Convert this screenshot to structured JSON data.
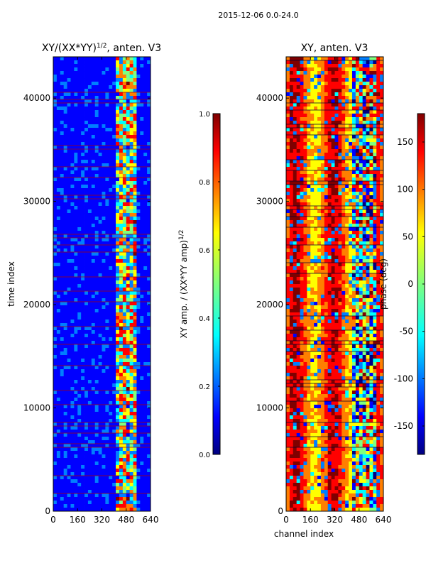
{
  "suptitle": "2015-12-06 0.0-24.0",
  "colors": {
    "jet": [
      "#00007f",
      "#0000ff",
      "#007fff",
      "#00ffff",
      "#7fff7f",
      "#ffff00",
      "#ff7f00",
      "#ff0000",
      "#7f0000"
    ],
    "axis": "#000000",
    "bg": "#ffffff"
  },
  "chart_data": [
    {
      "type": "heatmap",
      "title": "XY/(XX*YY)^1/2, anten. V3",
      "title_main": "XY/(XX*YY)",
      "title_exp": "1/2",
      "title_tail": ", anten. V3",
      "xlabel": "",
      "ylabel": "time index",
      "xlim": [
        0,
        640
      ],
      "ylim": [
        0,
        44000
      ],
      "xticks": [
        0,
        160,
        320,
        480,
        640
      ],
      "yticks": [
        0,
        10000,
        20000,
        30000,
        40000
      ],
      "colorbar": {
        "label": "XY amp. / (XX*YY amp)^1/2",
        "label_main": "XY amp. / (XX*YY amp)",
        "label_exp": "1/2",
        "range": [
          0.0,
          1.0
        ],
        "ticks": [
          "0.0",
          "0.2",
          "0.4",
          "0.6",
          "0.8",
          "1.0"
        ]
      }
    },
    {
      "type": "heatmap",
      "title": "XY, anten. V3",
      "xlabel": "channel index",
      "ylabel": "",
      "xlim": [
        0,
        640
      ],
      "ylim": [
        0,
        44000
      ],
      "xticks": [
        0,
        160,
        320,
        480,
        640
      ],
      "yticks": [
        0,
        10000,
        20000,
        30000,
        40000
      ],
      "colorbar": {
        "label": "phase (deg)",
        "range": [
          -180,
          180
        ],
        "ticks": [
          "-150",
          "-100",
          "-50",
          "0",
          "50",
          "100",
          "150"
        ]
      }
    }
  ]
}
